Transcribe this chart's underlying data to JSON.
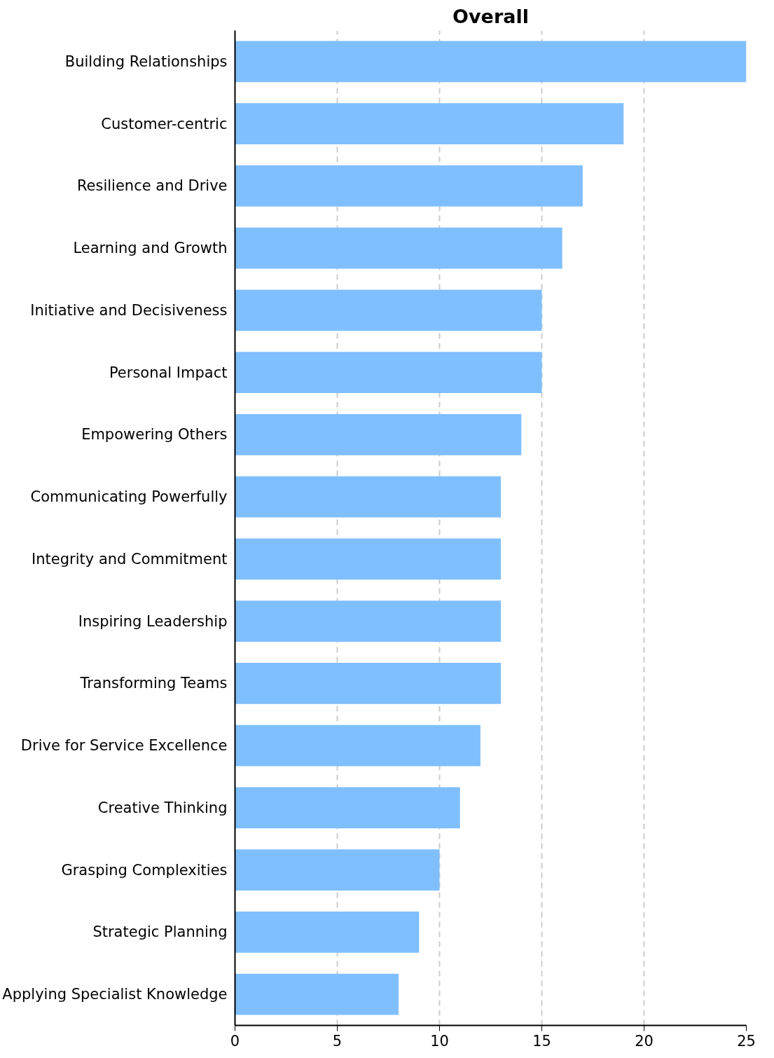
{
  "chart_data": {
    "type": "bar",
    "orientation": "horizontal",
    "title": "Overall",
    "categories": [
      "Building Relationships",
      "Customer-centric",
      "Resilience and Drive",
      "Learning and Growth",
      "Initiative and Decisiveness",
      "Personal Impact",
      "Empowering Others",
      "Communicating Powerfully",
      "Integrity and Commitment",
      "Inspiring Leadership",
      "Transforming Teams",
      "Drive for Service Excellence",
      "Creative Thinking",
      "Grasping Complexities",
      "Strategic Planning",
      "Applying Specialist Knowledge"
    ],
    "values": [
      25,
      19,
      17,
      16,
      15,
      15,
      14,
      13,
      13,
      13,
      13,
      12,
      11,
      10,
      9,
      8
    ],
    "color": "#80bfff",
    "xlim": [
      0,
      25
    ],
    "xticks": [
      0,
      5,
      10,
      15,
      20,
      25
    ],
    "grid": "x"
  }
}
